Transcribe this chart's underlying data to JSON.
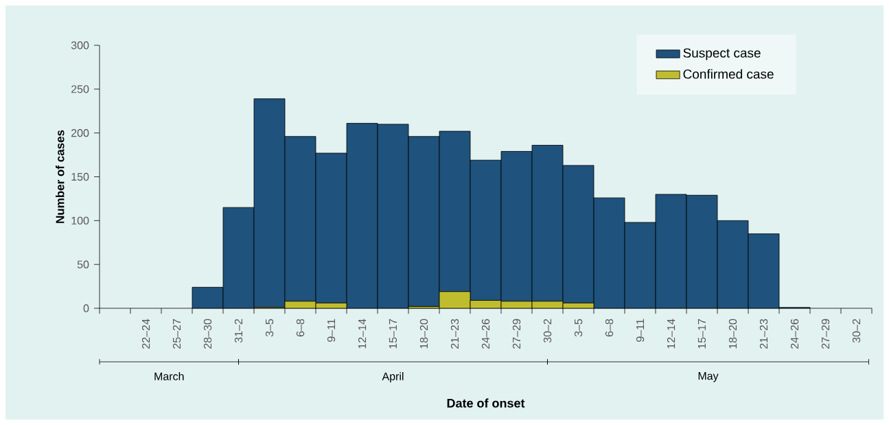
{
  "chart_data": {
    "type": "bar",
    "stacked": true,
    "xlabel": "Date of onset",
    "ylabel": "Number of cases",
    "categories": [
      null,
      "22–24",
      "25–27",
      "28–30",
      "31–2",
      "3–5",
      "6–8",
      "9–11",
      "12–14",
      "15–17",
      "18–20",
      "21–23",
      "24–26",
      "27–29",
      "30–2",
      "3–5",
      "6–8",
      "9–11",
      "12–14",
      "15–17",
      "18–20",
      "21–23",
      "24–26",
      "27–29",
      "30–2"
    ],
    "series": [
      {
        "name": "Confirmed case",
        "color": "#bfbd2e",
        "values": [
          null,
          0,
          0,
          0,
          0,
          1,
          8,
          6,
          0,
          0,
          2,
          19,
          9,
          8,
          8,
          6,
          0,
          0,
          0,
          0,
          0,
          0,
          0,
          0,
          0
        ]
      },
      {
        "name": "Suspect case",
        "color": "#1f527c",
        "values": [
          null,
          0,
          0,
          24,
          115,
          238,
          188,
          171,
          211,
          210,
          194,
          183,
          160,
          171,
          178,
          157,
          126,
          98,
          130,
          129,
          100,
          85,
          1,
          0,
          0
        ]
      }
    ],
    "ylim": [
      0,
      300
    ],
    "yticks": [
      0,
      50,
      100,
      150,
      200,
      250,
      300
    ],
    "legend": "top right",
    "annotations": [
      "March",
      "April",
      "May"
    ]
  }
}
